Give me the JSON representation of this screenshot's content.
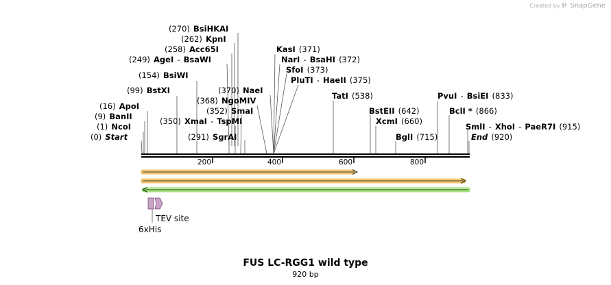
{
  "credit": {
    "created_by": "Created by",
    "brand": "SnapGene"
  },
  "title": "FUS LC-RGG1 wild type",
  "length_label": "920 bp",
  "sites": [
    {
      "pos": "(270)",
      "name": "BsiHKAI"
    },
    {
      "pos": "(262)",
      "name": "KpnI"
    },
    {
      "pos": "(258)",
      "name": "Acc65I"
    },
    {
      "pos": "(249)",
      "name": "AgeI",
      "sep": "-",
      "name2": "BsaWI"
    },
    {
      "pos": "(154)",
      "name": "BsiWI"
    },
    {
      "pos": "(99)",
      "name": "BstXI"
    },
    {
      "pos": "(370)",
      "name": "NaeI"
    },
    {
      "pos": "(368)",
      "name": "NgoMIV"
    },
    {
      "pos": "(352)",
      "name": "SmaI"
    },
    {
      "pos": "(350)",
      "name": "XmaI",
      "sep": "-",
      "name2": "TspMI"
    },
    {
      "pos": "(291)",
      "name": "SgrAI"
    },
    {
      "pos": "(16)",
      "name": "ApoI"
    },
    {
      "pos": "(9)",
      "name": "BanII"
    },
    {
      "pos": "(1)",
      "name": "NcoI"
    },
    {
      "pos": "(0)",
      "name": "Start"
    },
    {
      "pos": "(371)",
      "name": "KasI"
    },
    {
      "pos": "(372)",
      "name": "NarI",
      "sep": "-",
      "name2": "BsaHI"
    },
    {
      "pos": "(373)",
      "name": "SfoI"
    },
    {
      "pos": "(375)",
      "name": "PluTI",
      "sep": "-",
      "name2": "HaeII"
    },
    {
      "pos": "(538)",
      "name": "TatI"
    },
    {
      "pos": "(642)",
      "name": "BstEII"
    },
    {
      "pos": "(660)",
      "name": "XcmI"
    },
    {
      "pos": "(715)",
      "name": "BglI"
    },
    {
      "pos": "(833)",
      "name": "PvuI",
      "sep": "-",
      "name2": "BsiEI"
    },
    {
      "pos": "(866)",
      "name": "BclI *"
    },
    {
      "pos": "(915)",
      "name": "SmlI",
      "sep": "-",
      "name2": "XhoI",
      "sep2": "-",
      "name3": "PaeR7I"
    },
    {
      "pos": "(920)",
      "name": "End"
    }
  ],
  "ticks": [
    "200",
    "400",
    "600",
    "800"
  ],
  "features": {
    "his_tag": "6xHis",
    "tev_site": "TEV site"
  },
  "colors": {
    "orange_arrow": "#f4b942",
    "green_arrow": "#8fe05a",
    "feature_box": "#c9a3c6"
  }
}
